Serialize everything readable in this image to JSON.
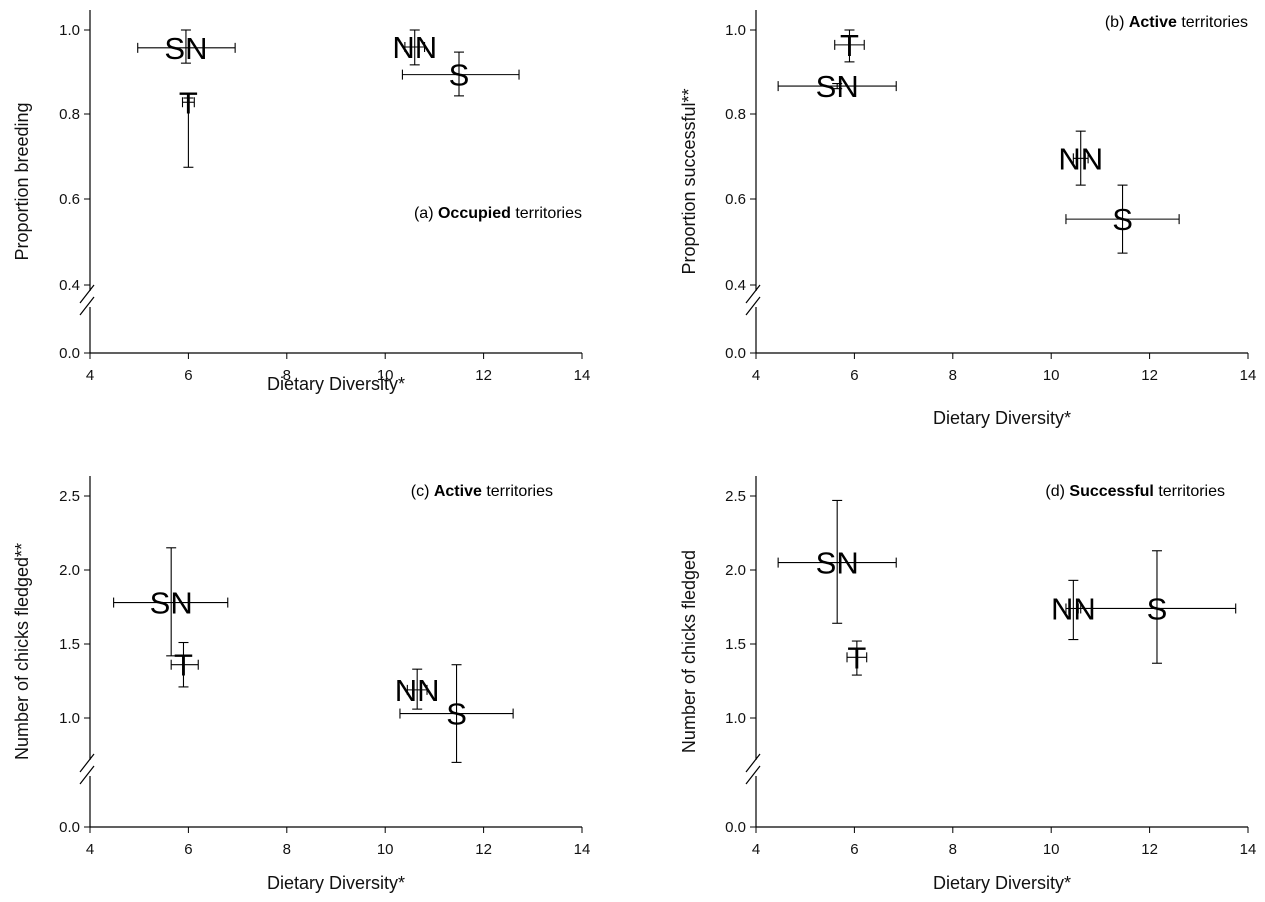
{
  "chart_data": [
    {
      "id": "a",
      "type": "scatter",
      "xlabel": "Dietary Diversity*",
      "ylabel": "Proportion breeding",
      "xlim": [
        4,
        14
      ],
      "xticks": [
        "4",
        "6",
        "8",
        "10",
        "12",
        "14"
      ],
      "yticks": [
        "0.0",
        "0.4",
        "0.6",
        "0.8",
        "1.0"
      ],
      "y_axis_break": true,
      "annotation": {
        "prefix": "(a) ",
        "bold": "Occupied",
        "suffix": " territories"
      },
      "points": [
        {
          "label": "SN",
          "x": 5.95,
          "y": 0.958,
          "x_lo": 4.97,
          "x_hi": 6.95,
          "y_lo": 0.922,
          "y_hi": 1.0
        },
        {
          "label": "T",
          "x": 6.0,
          "y": 0.83,
          "x_lo": 5.88,
          "x_hi": 6.12,
          "y_lo": 0.677,
          "y_hi": 0.84
        },
        {
          "label": "NN",
          "x": 10.6,
          "y": 0.96,
          "x_lo": 10.4,
          "x_hi": 10.8,
          "y_lo": 0.918,
          "y_hi": 1.0
        },
        {
          "label": "S",
          "x": 11.5,
          "y": 0.895,
          "x_lo": 10.35,
          "x_hi": 12.72,
          "y_lo": 0.845,
          "y_hi": 0.948
        }
      ]
    },
    {
      "id": "b",
      "type": "scatter",
      "xlabel": "Dietary Diversity*",
      "ylabel": "Proportion successful**",
      "xlim": [
        4,
        14
      ],
      "xticks": [
        "4",
        "6",
        "8",
        "10",
        "12",
        "14"
      ],
      "yticks": [
        "0.0",
        "0.4",
        "0.6",
        "0.8",
        "1.0"
      ],
      "y_axis_break": true,
      "annotation": {
        "prefix": "(b) ",
        "bold": "Active",
        "suffix": " territories"
      },
      "points": [
        {
          "label": "T",
          "x": 5.9,
          "y": 0.965,
          "x_lo": 5.6,
          "x_hi": 6.2,
          "y_lo": 0.925,
          "y_hi": 1.0
        },
        {
          "label": "SN",
          "x": 5.65,
          "y": 0.868,
          "x_lo": 4.45,
          "x_hi": 6.85,
          "y_lo": 0.862,
          "y_hi": 0.874
        },
        {
          "label": "NN",
          "x": 10.6,
          "y": 0.698,
          "x_lo": 10.45,
          "x_hi": 10.75,
          "y_lo": 0.635,
          "y_hi": 0.762
        },
        {
          "label": "S",
          "x": 11.45,
          "y": 0.555,
          "x_lo": 10.3,
          "x_hi": 12.6,
          "y_lo": 0.475,
          "y_hi": 0.635
        }
      ]
    },
    {
      "id": "c",
      "type": "scatter",
      "xlabel": "Dietary Diversity*",
      "ylabel": "Number of chicks fledged**",
      "xlim": [
        4,
        14
      ],
      "xticks": [
        "4",
        "6",
        "8",
        "10",
        "12",
        "14"
      ],
      "yticks": [
        "0.0",
        "1.0",
        "1.5",
        "2.0",
        "2.5"
      ],
      "y_axis_break": true,
      "annotation": {
        "prefix": "(c) ",
        "bold": "Active",
        "suffix": " territories"
      },
      "points": [
        {
          "label": "SN",
          "x": 5.65,
          "y": 1.78,
          "x_lo": 4.48,
          "x_hi": 6.8,
          "y_lo": 1.42,
          "y_hi": 2.15
        },
        {
          "label": "T",
          "x": 5.9,
          "y": 1.36,
          "x_lo": 5.65,
          "x_hi": 6.2,
          "y_lo": 1.21,
          "y_hi": 1.51
        },
        {
          "label": "NN",
          "x": 10.65,
          "y": 1.19,
          "x_lo": 10.45,
          "x_hi": 10.85,
          "y_lo": 1.06,
          "y_hi": 1.33
        },
        {
          "label": "S",
          "x": 11.45,
          "y": 1.03,
          "x_lo": 10.3,
          "x_hi": 12.6,
          "y_lo": 0.7,
          "y_hi": 1.36
        }
      ]
    },
    {
      "id": "d",
      "type": "scatter",
      "xlabel": "Dietary Diversity*",
      "ylabel": "Number of chicks fledged",
      "xlim": [
        4,
        14
      ],
      "xticks": [
        "4",
        "6",
        "8",
        "10",
        "12",
        "14"
      ],
      "yticks": [
        "0.0",
        "1.0",
        "1.5",
        "2.0",
        "2.5"
      ],
      "y_axis_break": true,
      "annotation": {
        "prefix": "(d) ",
        "bold": "Successful",
        "suffix": " territories"
      },
      "points": [
        {
          "label": "SN",
          "x": 5.65,
          "y": 2.05,
          "x_lo": 4.45,
          "x_hi": 6.85,
          "y_lo": 1.64,
          "y_hi": 2.47
        },
        {
          "label": "T",
          "x": 6.05,
          "y": 1.41,
          "x_lo": 5.85,
          "x_hi": 6.25,
          "y_lo": 1.29,
          "y_hi": 1.52
        },
        {
          "label": "NN",
          "x": 10.45,
          "y": 1.74,
          "x_lo": 10.3,
          "x_hi": 10.6,
          "y_lo": 1.53,
          "y_hi": 1.93
        },
        {
          "label": "S",
          "x": 12.15,
          "y": 1.74,
          "x_lo": 10.55,
          "x_hi": 13.75,
          "y_lo": 1.37,
          "y_hi": 2.13
        }
      ]
    }
  ]
}
